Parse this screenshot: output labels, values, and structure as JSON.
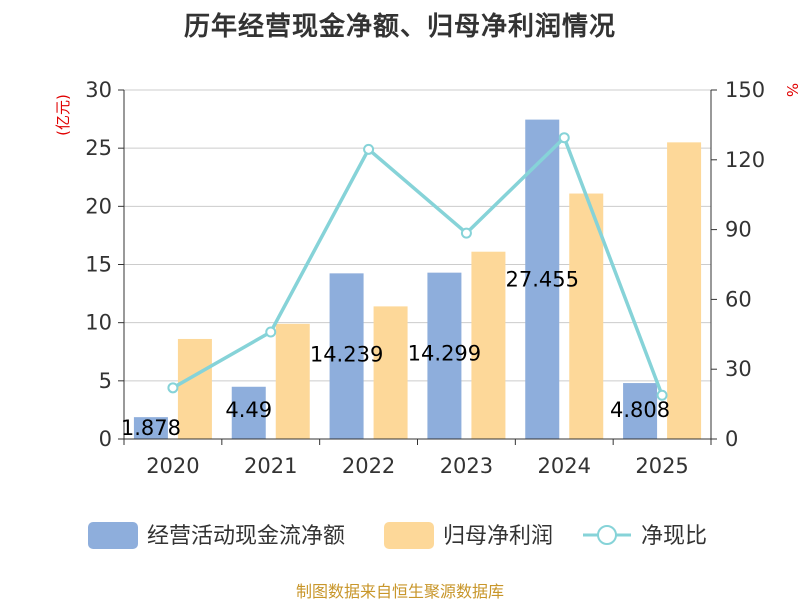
{
  "chart_data": {
    "type": "bar",
    "title": "历年经营现金净额、归母净利润情况",
    "categories": [
      "2020",
      "2021",
      "2022",
      "2023",
      "2024",
      "2025"
    ],
    "series": [
      {
        "name": "经营活动现金流净额",
        "type": "bar",
        "axis": "left",
        "color": "#8eaedc",
        "values": [
          1.878,
          4.49,
          14.239,
          14.299,
          27.455,
          4.808
        ],
        "labels": [
          "1.878",
          "4.49",
          "14.239",
          "14.299",
          "27.455",
          "4.808"
        ]
      },
      {
        "name": "归母净利润",
        "type": "bar",
        "axis": "left",
        "color": "#fdd899",
        "values": [
          8.6,
          9.9,
          11.4,
          16.1,
          21.1,
          25.5
        ]
      },
      {
        "name": "净现比",
        "type": "line",
        "axis": "right",
        "color": "#86d3d8",
        "values": [
          22,
          46,
          124.5,
          88.5,
          129.5,
          18.8
        ]
      }
    ],
    "y_left": {
      "unit": "(亿元)",
      "min": 0,
      "max": 30,
      "ticks": [
        0,
        5,
        10,
        15,
        20,
        25,
        30
      ]
    },
    "y_right": {
      "unit": "%",
      "min": 0,
      "max": 150,
      "ticks": [
        0,
        30,
        60,
        90,
        120,
        150
      ]
    },
    "legend_position": "bottom"
  },
  "source": "制图数据来自恒生聚源数据库"
}
